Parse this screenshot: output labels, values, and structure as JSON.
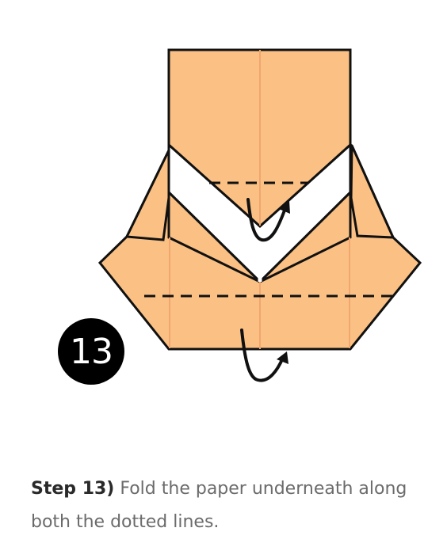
{
  "diagram": {
    "step_number": "13",
    "paper_color": "#FBC184",
    "crease_color": "#F0A66E",
    "outline_color": "#111111"
  },
  "caption": {
    "label": "Step 13)",
    "text": " Fold the paper underneath along both the dotted lines."
  }
}
